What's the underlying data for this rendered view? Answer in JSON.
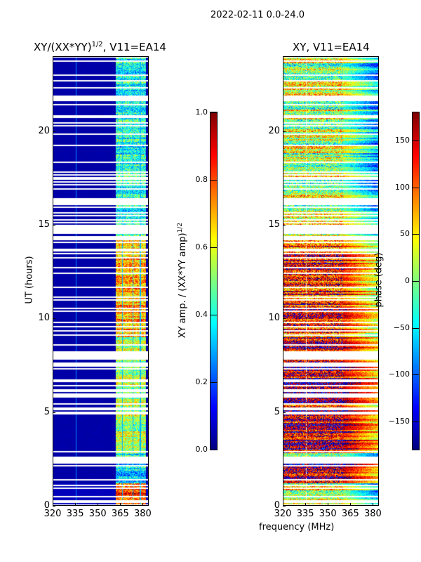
{
  "figure_title": "2022-02-11 0.0-24.0",
  "chart_data": [
    {
      "type": "heatmap",
      "title": "XY/(XX*YY)",
      "title_sup": "1/2",
      "title_suffix": ", V11=EA14",
      "xlabel": "",
      "ylabel": "UT (hours)",
      "xlim": [
        320,
        384
      ],
      "ylim": [
        0,
        24
      ],
      "xticks": [
        "320",
        "335",
        "350",
        "365",
        "380"
      ],
      "yticks": [
        "0",
        "5",
        "10",
        "15",
        "20"
      ],
      "colorbar": {
        "label": "XY amp. / (XX*YY amp)",
        "label_sup": "1/2",
        "range": [
          0.0,
          1.0
        ],
        "ticks": [
          "0.0",
          "0.2",
          "0.4",
          "0.6",
          "0.8",
          "1.0"
        ],
        "colormap": "jet"
      },
      "segments": [
        {
          "hours": [
            0,
            1.2
          ],
          "low_band_value": 0.05,
          "high_band_value": 0.85
        },
        {
          "hours": [
            1.2,
            2.6
          ],
          "low_band_value": 0.03,
          "high_band_value": 0.35
        },
        {
          "hours": [
            2.8,
            9.0
          ],
          "low_band_value": 0.03,
          "high_band_value": 0.55
        },
        {
          "hours": [
            9.0,
            14.2
          ],
          "low_band_value": 0.03,
          "high_band_value": 0.7
        },
        {
          "hours": [
            14.2,
            24
          ],
          "low_band_value": 0.03,
          "high_band_value": 0.4
        }
      ],
      "high_band_MHz": [
        362,
        382
      ],
      "flagged_hours": [
        [
          2.4,
          2.6
        ],
        [
          14.5,
          15.0
        ],
        [
          21.6,
          21.9
        ]
      ]
    },
    {
      "type": "heatmap",
      "title": "XY, V11=EA14",
      "xlabel": "frequency (MHz)",
      "ylabel": "",
      "xlim": [
        320,
        384
      ],
      "ylim": [
        0,
        24
      ],
      "xticks": [
        "320",
        "335",
        "350",
        "365",
        "380"
      ],
      "yticks": [
        "0",
        "5",
        "10",
        "15",
        "20"
      ],
      "colorbar": {
        "label": "phase (deg)",
        "range": [
          -180,
          180
        ],
        "ticks": [
          "−150",
          "−100",
          "−50",
          "0",
          "50",
          "100",
          "150"
        ],
        "tick_values": [
          -150,
          -100,
          -50,
          0,
          50,
          100,
          150
        ],
        "colormap": "jet"
      },
      "segments": [
        {
          "hours": [
            0,
            1.2
          ],
          "mean_phase": 40
        },
        {
          "hours": [
            1.2,
            2.6
          ],
          "mean_phase": 160
        },
        {
          "hours": [
            2.8,
            9.0
          ],
          "mean_phase": 150
        },
        {
          "hours": [
            9.0,
            14.2
          ],
          "mean_phase": 120
        },
        {
          "hours": [
            14.2,
            24
          ],
          "mean_phase": 20
        }
      ],
      "flagged_hours": [
        [
          2.4,
          2.6
        ],
        [
          14.5,
          15.0
        ],
        [
          21.6,
          21.9
        ]
      ]
    }
  ]
}
